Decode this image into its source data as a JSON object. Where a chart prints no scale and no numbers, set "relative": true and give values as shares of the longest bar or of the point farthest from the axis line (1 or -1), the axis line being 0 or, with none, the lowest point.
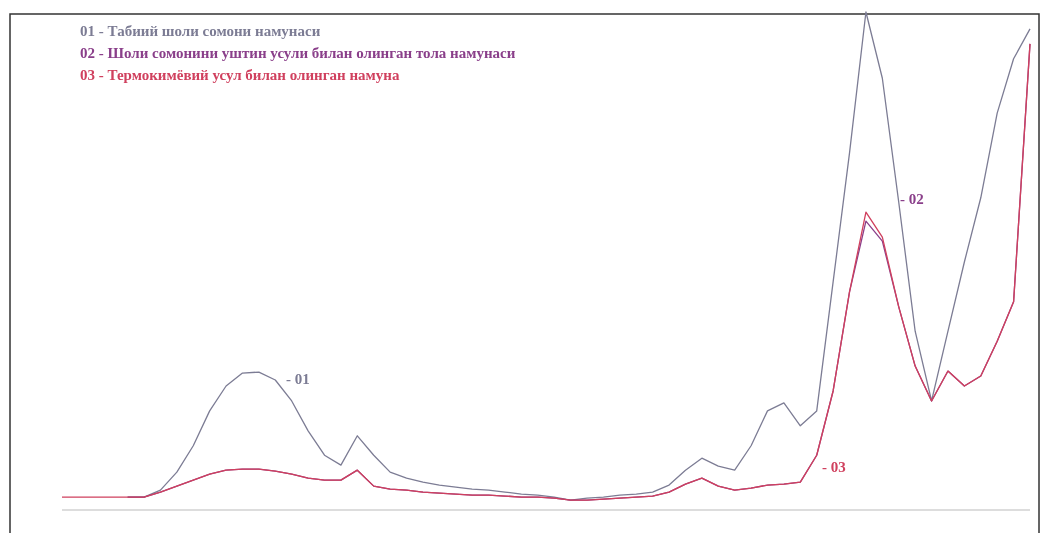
{
  "chart_data": {
    "type": "line",
    "relative": true,
    "legend": "top left",
    "grid": false,
    "marker": "none",
    "line_style": "solid",
    "categories": [
      null,
      null,
      null,
      null,
      null,
      null,
      null,
      null,
      null,
      null,
      null,
      null,
      null,
      null,
      null,
      null,
      null,
      null,
      null,
      null,
      null,
      null,
      null,
      null,
      null,
      null,
      null,
      null,
      null,
      null,
      null,
      null,
      null,
      null,
      null,
      null,
      null,
      null,
      null,
      null,
      null,
      null,
      null,
      null,
      null,
      null,
      null,
      null,
      null,
      null,
      null,
      null,
      null,
      null,
      null,
      null,
      null,
      null,
      null,
      null
    ],
    "series": [
      {
        "name": "01 - Табиий шоли сомони намунаси",
        "color": "#7c7c94",
        "values": [
          null,
          null,
          null,
          null,
          0.026,
          0.026,
          0.04,
          0.076,
          0.129,
          0.199,
          0.249,
          0.275,
          0.277,
          0.261,
          0.219,
          0.159,
          0.11,
          0.09,
          0.149,
          0.11,
          0.076,
          0.064,
          0.056,
          0.05,
          0.046,
          0.042,
          0.04,
          0.036,
          0.032,
          0.03,
          0.026,
          0.02,
          0.024,
          0.026,
          0.03,
          0.032,
          0.036,
          0.05,
          0.08,
          0.104,
          0.088,
          0.08,
          0.129,
          0.199,
          0.215,
          0.169,
          0.199,
          0.458,
          0.717,
          1,
          0.867,
          0.618,
          0.359,
          0.219,
          0.359,
          0.498,
          0.627,
          0.797,
          0.906,
          0.966
        ]
      },
      {
        "name": "02 - Шоли сомонини уштин усули билан олинган тола намунаси",
        "color": "#8a3f8a",
        "values": [
          null,
          null,
          null,
          null,
          0.026,
          0.026,
          0.036,
          0.048,
          0.06,
          0.072,
          0.08,
          0.082,
          0.082,
          0.078,
          0.072,
          0.064,
          0.06,
          0.06,
          0.08,
          0.048,
          0.042,
          0.04,
          0.036,
          0.034,
          0.032,
          0.03,
          0.03,
          0.028,
          0.026,
          0.026,
          0.024,
          0.02,
          0.02,
          0.022,
          0.024,
          0.026,
          0.028,
          0.036,
          0.052,
          0.064,
          0.048,
          0.04,
          0.044,
          0.05,
          0.052,
          0.056,
          0.11,
          0.239,
          0.438,
          0.58,
          0.54,
          0.408,
          0.289,
          0.219,
          0.279,
          0.249,
          0.269,
          0.339,
          0.418,
          0.936
        ]
      },
      {
        "name": "03 - Термокимёвий усул билан олинган намуна",
        "color": "#d0405e",
        "values": [
          0.026,
          0.026,
          0.026,
          0.026,
          0.026,
          0.026,
          0.036,
          0.048,
          0.06,
          0.072,
          0.08,
          0.082,
          0.082,
          0.078,
          0.072,
          0.064,
          0.06,
          0.06,
          0.08,
          0.048,
          0.042,
          0.04,
          0.036,
          0.034,
          0.032,
          0.03,
          0.03,
          0.028,
          0.026,
          0.026,
          0.024,
          0.02,
          0.02,
          0.022,
          0.024,
          0.026,
          0.028,
          0.036,
          0.052,
          0.064,
          0.048,
          0.04,
          0.044,
          0.05,
          0.052,
          0.056,
          0.11,
          0.239,
          0.438,
          0.598,
          0.548,
          0.408,
          0.289,
          0.219,
          0.279,
          0.249,
          0.269,
          0.339,
          0.418,
          0.936
        ]
      }
    ],
    "annotations": [
      "- 01",
      "- 02",
      "- 03"
    ]
  }
}
